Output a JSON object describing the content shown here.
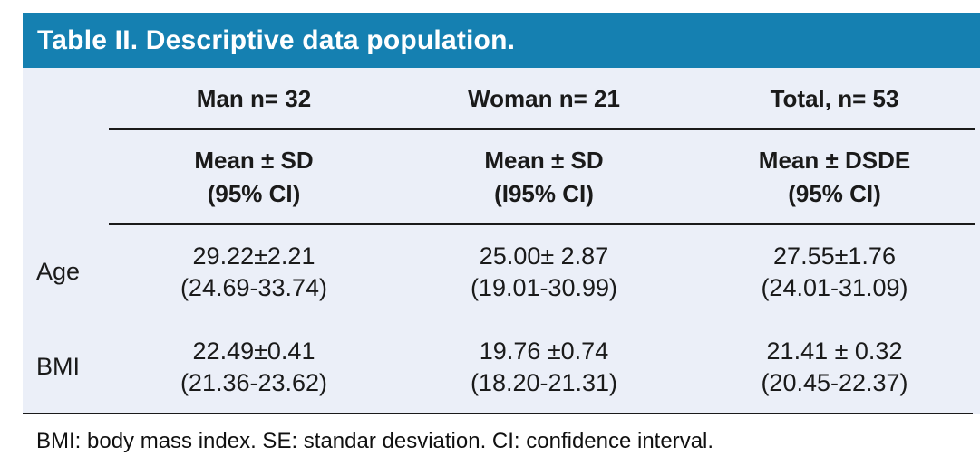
{
  "title": "Table II. Descriptive data population.",
  "colors": {
    "title_bar_bg": "#1580b1",
    "title_text": "#ffffff",
    "panel_bg": "#ebeff8",
    "rule": "#1a1a1a",
    "body_text": "#1a1a1a"
  },
  "table": {
    "group_headers": [
      "Man n= 32",
      "Woman n= 21",
      "Total, n= 53"
    ],
    "sub_headers": [
      {
        "line1": "Mean ± SD",
        "line2": "(95% CI)"
      },
      {
        "line1": "Mean ± SD",
        "line2": "(I95% CI)"
      },
      {
        "line1": "Mean ± DSDE",
        "line2": "(95% CI)"
      }
    ],
    "rows": [
      {
        "label": "Age",
        "cells": [
          {
            "line1": "29.22±2.21",
            "line2": "(24.69-33.74)"
          },
          {
            "line1": "25.00± 2.87",
            "line2": "(19.01-30.99)"
          },
          {
            "line1": "27.55±1.76",
            "line2": "(24.01-31.09)"
          }
        ]
      },
      {
        "label": "BMI",
        "cells": [
          {
            "line1": "22.49±0.41",
            "line2": "(21.36-23.62)"
          },
          {
            "line1": "19.76 ±0.74",
            "line2": "(18.20-21.31)"
          },
          {
            "line1": "21.41 ± 0.32",
            "line2": "(20.45-22.37)"
          }
        ]
      }
    ]
  },
  "footnote": "BMI: body mass index. SE: standar desviation. CI: confidence interval."
}
